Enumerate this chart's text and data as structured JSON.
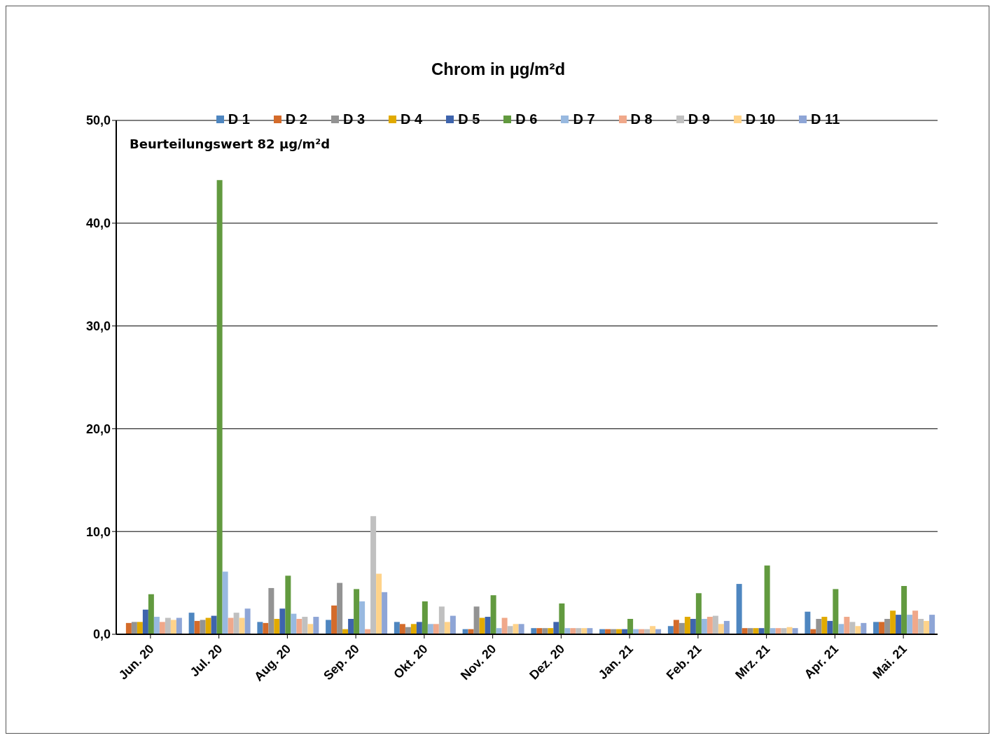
{
  "chart_data": {
    "type": "bar",
    "title": "Chrom in µg/m²d",
    "categories": [
      "Jun. 20",
      "Jul. 20",
      "Aug. 20",
      "Sep. 20",
      "Okt. 20",
      "Nov. 20",
      "Dez. 20",
      "Jan. 21",
      "Feb. 21",
      "Mrz. 21",
      "Apr. 21",
      "Mai. 21"
    ],
    "series": [
      {
        "name": "D 1",
        "color": "#4e86c0",
        "values": [
          null,
          2.1,
          1.2,
          1.4,
          1.2,
          0.5,
          0.6,
          0.5,
          0.8,
          4.9,
          2.2,
          1.2
        ]
      },
      {
        "name": "D 2",
        "color": "#d46b2a",
        "values": [
          1.1,
          1.3,
          1.1,
          2.8,
          1.0,
          0.5,
          0.6,
          0.5,
          1.4,
          0.6,
          0.5,
          1.2
        ]
      },
      {
        "name": "D 3",
        "color": "#939393",
        "values": [
          1.2,
          1.4,
          4.5,
          5.0,
          0.7,
          2.7,
          0.6,
          0.5,
          1.1,
          0.6,
          1.5,
          1.5
        ]
      },
      {
        "name": "D 4",
        "color": "#e1aa00",
        "values": [
          1.2,
          1.6,
          1.5,
          0.5,
          1.0,
          1.6,
          0.6,
          0.5,
          1.7,
          0.6,
          1.7,
          2.3
        ]
      },
      {
        "name": "D 5",
        "color": "#3e64ad",
        "values": [
          2.4,
          1.8,
          2.5,
          1.5,
          1.2,
          1.7,
          1.2,
          0.5,
          1.5,
          0.6,
          1.3,
          1.9
        ]
      },
      {
        "name": "D 6",
        "color": "#629a3f",
        "values": [
          3.9,
          44.2,
          5.7,
          4.4,
          3.2,
          3.8,
          3.0,
          1.5,
          4.0,
          6.7,
          4.4,
          4.7
        ]
      },
      {
        "name": "D 7",
        "color": "#98b9e0",
        "values": [
          1.7,
          6.1,
          2.0,
          3.2,
          1.0,
          0.6,
          0.6,
          0.5,
          1.5,
          0.6,
          1.0,
          1.9
        ]
      },
      {
        "name": "D 8",
        "color": "#f0a88a",
        "values": [
          1.2,
          1.6,
          1.5,
          0.5,
          1.0,
          1.6,
          0.6,
          0.5,
          1.7,
          0.6,
          1.7,
          2.3
        ]
      },
      {
        "name": "D 9",
        "color": "#c0c0c0",
        "values": [
          1.6,
          2.1,
          1.7,
          11.5,
          2.7,
          0.8,
          0.6,
          0.5,
          1.8,
          0.6,
          1.2,
          1.5
        ]
      },
      {
        "name": "D 10",
        "color": "#ffd38a",
        "values": [
          1.4,
          1.6,
          1.0,
          5.9,
          1.2,
          1.0,
          0.6,
          0.8,
          1.0,
          0.7,
          0.8,
          1.3
        ]
      },
      {
        "name": "D 11",
        "color": "#8ea5d6",
        "values": [
          1.6,
          2.5,
          1.7,
          4.1,
          1.8,
          1.0,
          0.6,
          0.5,
          1.3,
          0.6,
          1.1,
          1.9
        ]
      }
    ],
    "ylim": [
      0,
      50
    ],
    "yticks": [
      {
        "value": 0,
        "label": "0,0"
      },
      {
        "value": 10,
        "label": "10,0"
      },
      {
        "value": 20,
        "label": "20,0"
      },
      {
        "value": 30,
        "label": "30,0"
      },
      {
        "value": 40,
        "label": "40,0"
      },
      {
        "value": 50,
        "label": "50,0"
      }
    ],
    "grid": "y",
    "legend": "top",
    "annotations": [
      "Beurteilungswert 82 µg/m²d"
    ]
  }
}
